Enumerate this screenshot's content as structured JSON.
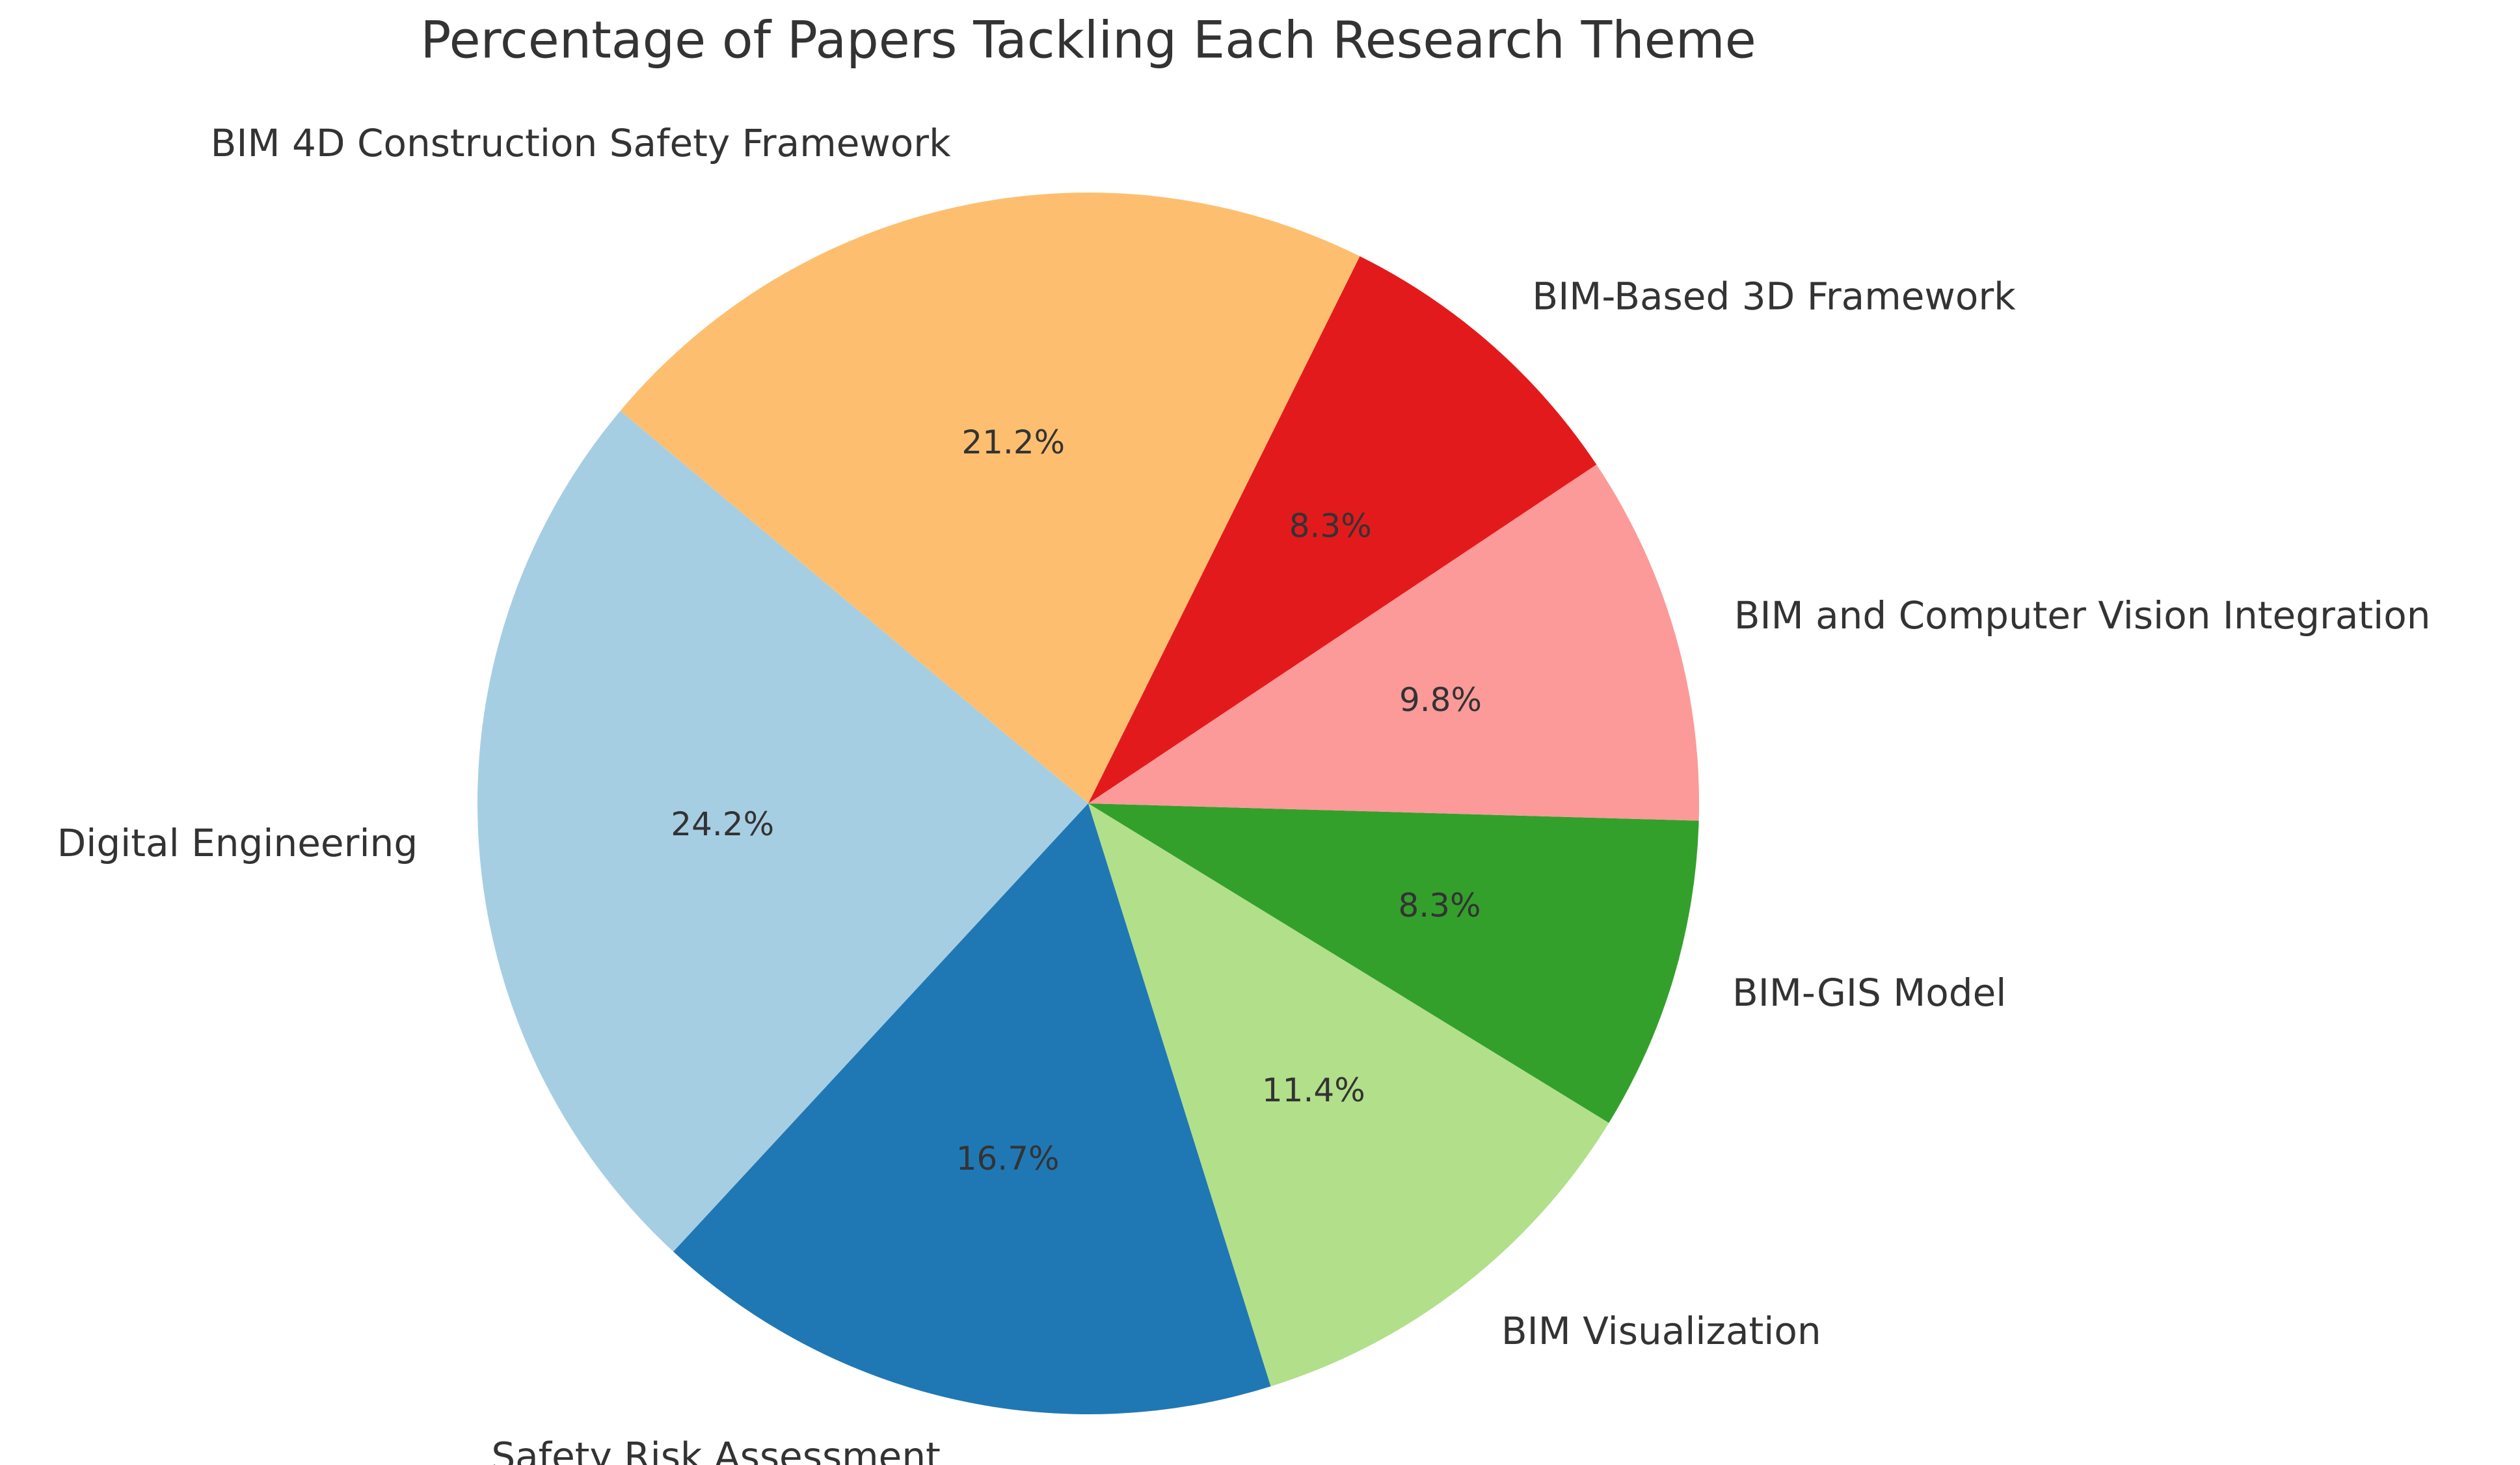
{
  "chart_data": {
    "type": "pie",
    "title": "Percentage of Papers Tackling Each Research Theme",
    "categories": [
      "Digital Engineering",
      "Safety Risk Assessment",
      "BIM Visualization",
      "BIM-GIS Model",
      "BIM and Computer Vision Integration",
      "BIM-Based 3D Framework",
      "BIM 4D Construction Safety Framework"
    ],
    "values": [
      24.2,
      16.7,
      11.4,
      8.3,
      9.8,
      8.3,
      21.2
    ],
    "value_labels": [
      "24.2%",
      "16.7%",
      "11.4%",
      "8.3%",
      "9.8%",
      "8.3%",
      "21.2%"
    ],
    "colors": [
      "#a6cee3",
      "#1f78b4",
      "#b2df8a",
      "#33a02c",
      "#fb9a99",
      "#e31a1c",
      "#fdbf6f"
    ],
    "start_angle": 140
  }
}
